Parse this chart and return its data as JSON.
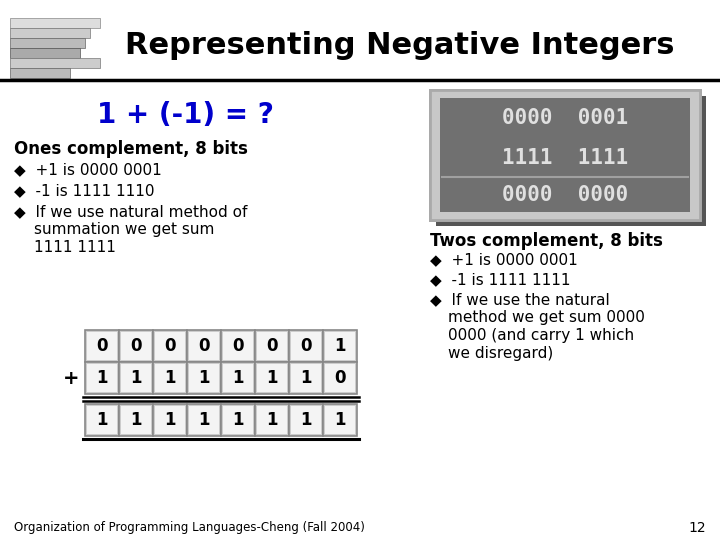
{
  "title": "Representing Negative Integers",
  "equation": "1 + (-1) = ?",
  "bg_color": "#ffffff",
  "title_color": "#000000",
  "eq_color": "#0000cc",
  "ones_header": "Ones complement, 8 bits",
  "ones_bullets": [
    "+1 is 0000 0001",
    "-1 is 1111 1110",
    "If we use natural method of",
    "summation we get sum",
    "1111 1111"
  ],
  "twos_header": "Twos complement, 8 bits",
  "twos_bullets_line1": "+1 is 0000 0001",
  "twos_bullets_line2": "-1 is 1111 1111",
  "twos_bullets_line3a": "If we use the natural",
  "twos_bullets_line3b": "method we get sum 0000",
  "twos_bullets_line3c": "0000 (and carry 1 which",
  "twos_bullets_line3d": "we disregard)",
  "box_row1": "0000  0001",
  "box_row2": "1111  1111",
  "box_row3": "0000  0000",
  "addition_top": [
    "0",
    "0",
    "0",
    "0",
    "0",
    "0",
    "0",
    "1"
  ],
  "addition_bot": [
    "1",
    "1",
    "1",
    "1",
    "1",
    "1",
    "1",
    "0"
  ],
  "addition_res": [
    "1",
    "1",
    "1",
    "1",
    "1",
    "1",
    "1",
    "1"
  ],
  "footer": "Organization of Programming Languages-Cheng (Fall 2004)",
  "page_num": "12",
  "title_fontsize": 22,
  "eq_fontsize": 20,
  "header_fontsize": 12,
  "bullet_fontsize": 11,
  "cell_fontsize": 12
}
